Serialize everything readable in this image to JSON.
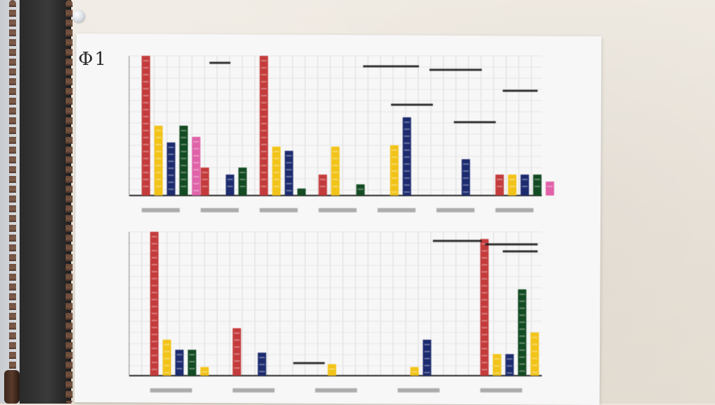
{
  "scene": {
    "handwritten_label": "Φ1"
  },
  "colors": {
    "red": "#c43b3b",
    "yellow": "#f2c318",
    "navy": "#1d2b6f",
    "green": "#134b22",
    "pink": "#e062a8",
    "axis": "#262626",
    "paper": "#f7f7f7"
  },
  "icons": [
    "pushpin-icon",
    "blind-chain-icon"
  ],
  "chart_data": [
    {
      "type": "bar",
      "title": "",
      "xlabel": "",
      "ylabel": "",
      "series": [
        {
          "name": "",
          "color": "red",
          "values": [
            100,
            20,
            100,
            15,
            0,
            0,
            15
          ]
        },
        {
          "name": "",
          "color": "yellow",
          "values": [
            50,
            0,
            35,
            35,
            36,
            0,
            15
          ]
        },
        {
          "name": "",
          "color": "navy",
          "values": [
            38,
            15,
            32,
            0,
            56,
            26,
            15
          ]
        },
        {
          "name": "",
          "color": "green",
          "values": [
            50,
            20,
            5,
            8,
            0,
            0,
            15
          ]
        },
        {
          "name": "",
          "color": "pink",
          "values": [
            42,
            0,
            0,
            0,
            0,
            0,
            10
          ]
        }
      ]
    },
    {
      "type": "bar",
      "title": "",
      "xlabel": "",
      "ylabel": "",
      "series": [
        {
          "name": "",
          "color": "red",
          "values": [
            100,
            33,
            0,
            0,
            95
          ]
        },
        {
          "name": "",
          "color": "yellow",
          "values": [
            25,
            0,
            8,
            6,
            15
          ]
        },
        {
          "name": "",
          "color": "navy",
          "values": [
            18,
            16,
            0,
            25,
            15
          ]
        },
        {
          "name": "",
          "color": "green",
          "values": [
            18,
            0,
            0,
            0,
            60
          ]
        },
        {
          "name": "",
          "color": "yellow",
          "values": [
            6,
            0,
            0,
            0,
            30
          ]
        }
      ]
    }
  ]
}
